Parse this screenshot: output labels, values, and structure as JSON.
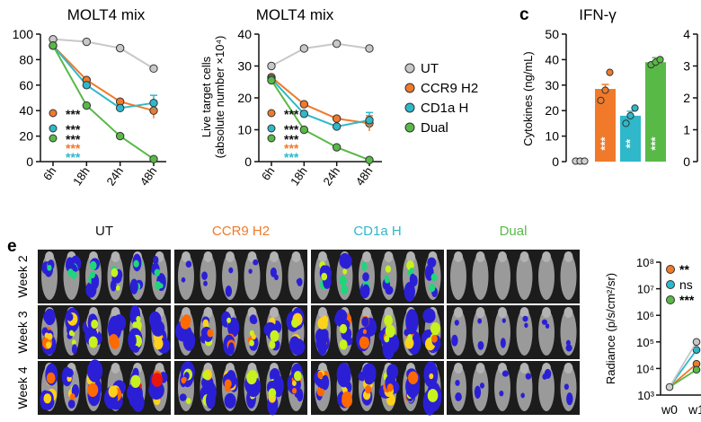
{
  "colors": {
    "UT": "#c8c8c8",
    "CCR9 H2": "#f07a2a",
    "CD1a H": "#2fb8c9",
    "Dual": "#58b947",
    "axis": "#111111",
    "star_black": "#111111"
  },
  "legend": {
    "items": [
      {
        "label": "UT",
        "color": "#c8c8c8"
      },
      {
        "label": "CCR9 H2",
        "color": "#f07a2a"
      },
      {
        "label": "CD1a H",
        "color": "#2fb8c9"
      },
      {
        "label": "Dual",
        "color": "#58b947"
      }
    ]
  },
  "panel_labels": {
    "c": "c",
    "e": "e"
  },
  "chart_data": [
    {
      "type": "line",
      "title": "MOLT4 mix",
      "xlabel": "",
      "ylabel": "",
      "categories": [
        "6h",
        "18h",
        "24h",
        "48h"
      ],
      "ylim": [
        0,
        100
      ],
      "yticks": [
        0,
        20,
        40,
        60,
        80,
        100
      ],
      "series": [
        {
          "name": "UT",
          "values": [
            96,
            94,
            89,
            73
          ]
        },
        {
          "name": "CCR9 H2",
          "values": [
            91,
            64,
            47,
            40
          ]
        },
        {
          "name": "CD1a H",
          "values": [
            91,
            60,
            42,
            46
          ]
        },
        {
          "name": "Dual",
          "values": [
            91,
            44,
            20,
            2
          ]
        }
      ],
      "annotations": [
        {
          "stars": "***",
          "color": "#111111"
        },
        {
          "stars": "***",
          "color": "#111111"
        },
        {
          "stars": "***",
          "color": "#111111"
        },
        {
          "stars": "***",
          "color": "#f07a2a"
        },
        {
          "stars": "***",
          "color": "#2fb8c9"
        }
      ]
    },
    {
      "type": "line",
      "title": "MOLT4 mix",
      "xlabel": "",
      "ylabel": "Live target cells",
      "ylabel2": "(absolute number ×10⁴)",
      "categories": [
        "6h",
        "18h",
        "24h",
        "48h"
      ],
      "ylim": [
        0,
        40
      ],
      "yticks": [
        0,
        10,
        20,
        30,
        40
      ],
      "series": [
        {
          "name": "UT",
          "values": [
            30,
            35.5,
            37,
            35.5
          ]
        },
        {
          "name": "CCR9 H2",
          "values": [
            26.5,
            18,
            13.5,
            12
          ]
        },
        {
          "name": "CD1a H",
          "values": [
            26,
            15,
            11,
            13
          ]
        },
        {
          "name": "Dual",
          "values": [
            25.5,
            10,
            4.5,
            0.5
          ]
        }
      ],
      "annotations": [
        {
          "stars": "***",
          "color": "#111111"
        },
        {
          "stars": "***",
          "color": "#111111"
        },
        {
          "stars": "***",
          "color": "#111111"
        },
        {
          "stars": "***",
          "color": "#f07a2a"
        },
        {
          "stars": "***",
          "color": "#2fb8c9"
        }
      ]
    },
    {
      "type": "bar",
      "title": "IFN-γ",
      "xlabel": "",
      "ylabel": "Cytokines (ng/mL)",
      "categories": [
        "UT",
        "CCR9 H2",
        "CD1a H",
        "Dual"
      ],
      "values": [
        0.2,
        28.5,
        18,
        39
      ],
      "ylim": [
        0,
        50
      ],
      "yticks": [
        0,
        10,
        20,
        30,
        40,
        50
      ],
      "points": [
        [
          0.2,
          0.2,
          0.2
        ],
        [
          24,
          28,
          35
        ],
        [
          15,
          18,
          21
        ],
        [
          38,
          39,
          40
        ]
      ],
      "annotations": [
        "",
        "***",
        "**",
        "***"
      ]
    },
    {
      "type": "line",
      "title": "",
      "xlabel": "",
      "ylabel": "Radiance (p/s/cm²/sr)",
      "categories": [
        "w0",
        "w1"
      ],
      "yscale": "log",
      "ylim": [
        1000,
        100000000
      ],
      "yticks": [
        "10³",
        "10⁴",
        "10⁵",
        "10⁶",
        "10⁷",
        "10⁸"
      ],
      "series": [
        {
          "name": "CCR9 H2",
          "values": [
            2000,
            15000
          ]
        },
        {
          "name": "CD1a H",
          "values": [
            2000,
            50000
          ]
        },
        {
          "name": "Dual",
          "values": [
            2000,
            9000
          ]
        },
        {
          "name": "UT",
          "values": [
            2000,
            100000
          ]
        }
      ],
      "legend": [
        {
          "label": "**",
          "color": "#f07a2a"
        },
        {
          "label": "ns",
          "color": "#2fb8c9"
        },
        {
          "label": "***",
          "color": "#58b947"
        }
      ]
    }
  ],
  "imaging": {
    "groups": [
      {
        "label": "UT",
        "color": "#111111"
      },
      {
        "label": "CCR9 H2",
        "color": "#f07a2a"
      },
      {
        "label": "CD1a H",
        "color": "#2fb8c9"
      },
      {
        "label": "Dual",
        "color": "#58b947"
      }
    ],
    "weeks": [
      "Week 2",
      "Week 3",
      "Week 4"
    ],
    "signal": [
      [
        0.55,
        0.15,
        0.55,
        0.0
      ],
      [
        0.9,
        0.85,
        0.9,
        0.12
      ],
      [
        1.0,
        0.9,
        0.95,
        0.15
      ]
    ]
  }
}
